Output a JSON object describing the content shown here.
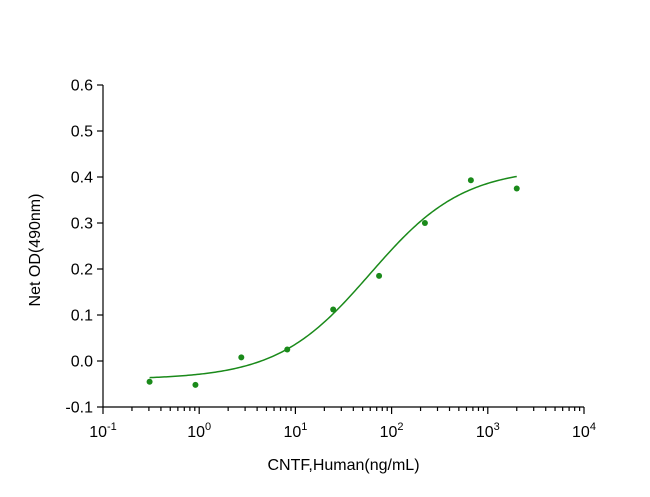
{
  "chart_data": {
    "type": "scatter",
    "xscale": "log",
    "xlabel": "CNTF,Human(ng/mL)",
    "ylabel": "Net OD(490nm)",
    "xlim": [
      0.1,
      10000
    ],
    "ylim": [
      -0.1,
      0.6
    ],
    "x_tick_labels": [
      {
        "base": "10",
        "exp": "-1"
      },
      {
        "base": "10",
        "exp": "0"
      },
      {
        "base": "10",
        "exp": "1"
      },
      {
        "base": "10",
        "exp": "2"
      },
      {
        "base": "10",
        "exp": "3"
      },
      {
        "base": "10",
        "exp": "4"
      }
    ],
    "y_ticks": [
      "-0.1",
      "0.0",
      "0.1",
      "0.2",
      "0.3",
      "0.4",
      "0.5",
      "0.6"
    ],
    "color": "#1a8a1a",
    "series": [
      {
        "x": [
          0.305,
          0.914,
          2.74,
          8.23,
          24.7,
          74.1,
          222,
          667,
          2000
        ],
        "y": [
          -0.045,
          -0.052,
          0.008,
          0.025,
          0.112,
          0.185,
          0.3,
          0.393,
          0.375
        ]
      }
    ],
    "fit": {
      "model": "4PL",
      "bottom": -0.04,
      "top": 0.42,
      "ec50": 60,
      "hill": 0.9,
      "x_range": [
        0.305,
        2000
      ]
    },
    "grid": false
  }
}
